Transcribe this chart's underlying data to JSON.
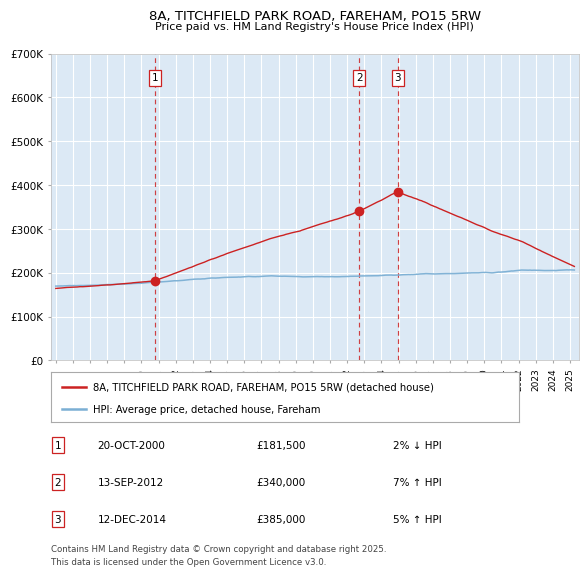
{
  "title": "8A, TITCHFIELD PARK ROAD, FAREHAM, PO15 5RW",
  "subtitle": "Price paid vs. HM Land Registry's House Price Index (HPI)",
  "ylabel_ticks": [
    "£0",
    "£100K",
    "£200K",
    "£300K",
    "£400K",
    "£500K",
    "£600K",
    "£700K"
  ],
  "ytick_vals": [
    0,
    100000,
    200000,
    300000,
    400000,
    500000,
    600000,
    700000
  ],
  "ylim": [
    0,
    700000
  ],
  "xlim_start": 1994.7,
  "xlim_end": 2025.5,
  "xticks": [
    1995,
    1996,
    1997,
    1998,
    1999,
    2000,
    2001,
    2002,
    2003,
    2004,
    2005,
    2006,
    2007,
    2008,
    2009,
    2010,
    2011,
    2012,
    2013,
    2014,
    2015,
    2016,
    2017,
    2018,
    2019,
    2020,
    2021,
    2022,
    2023,
    2024,
    2025
  ],
  "hpi_color": "#7bafd4",
  "price_color": "#cc2222",
  "background_color": "#dce9f5",
  "grid_color": "#ffffff",
  "sale_dates": [
    2000.79,
    2012.7,
    2014.95
  ],
  "sale_prices": [
    181500,
    340000,
    385000
  ],
  "sale_labels": [
    "1",
    "2",
    "3"
  ],
  "vline_color": "#cc2222",
  "dot_color": "#cc2222",
  "legend_price_label": "8A, TITCHFIELD PARK ROAD, FAREHAM, PO15 5RW (detached house)",
  "legend_hpi_label": "HPI: Average price, detached house, Fareham",
  "table_rows": [
    {
      "num": "1",
      "date": "20-OCT-2000",
      "price": "£181,500",
      "pct": "2% ↓ HPI"
    },
    {
      "num": "2",
      "date": "13-SEP-2012",
      "price": "£340,000",
      "pct": "7% ↑ HPI"
    },
    {
      "num": "3",
      "date": "12-DEC-2014",
      "price": "£385,000",
      "pct": "5% ↑ HPI"
    }
  ],
  "footnote": "Contains HM Land Registry data © Crown copyright and database right 2025.\nThis data is licensed under the Open Government Licence v3.0."
}
